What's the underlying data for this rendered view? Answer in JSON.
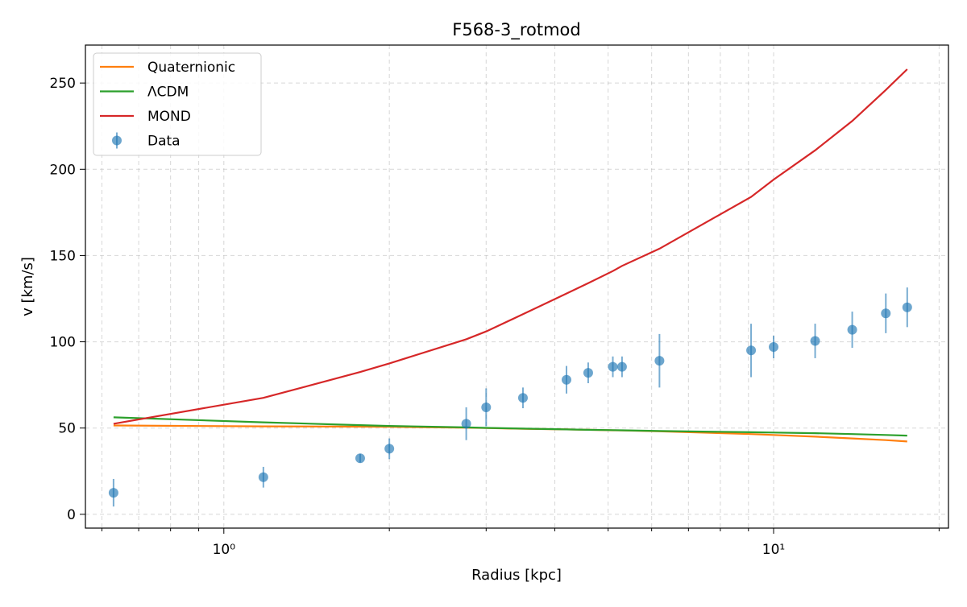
{
  "chart_data": {
    "type": "scatter",
    "title": "F568-3_rotmod",
    "xlabel": "Radius [kpc]",
    "ylabel": "v [km/s]",
    "xscale": "log",
    "xlim": [
      0.56,
      20.8
    ],
    "ylim": [
      -8,
      272
    ],
    "yticks": [
      0,
      50,
      100,
      150,
      200,
      250
    ],
    "ytick_labels": [
      "0",
      "50",
      "100",
      "150",
      "200",
      "250"
    ],
    "xticks_major": [
      1,
      10
    ],
    "xtick_labels": [
      "10⁰",
      "10¹"
    ],
    "grid": true,
    "legend_location": "upper-left",
    "series": [
      {
        "name": "Quaternionic",
        "kind": "line",
        "color": "#ff7f0e",
        "x": [
          0.63,
          1.18,
          1.77,
          2.0,
          2.76,
          3.0,
          3.5,
          4.2,
          4.6,
          5.1,
          5.3,
          6.2,
          9.1,
          10.0,
          11.9,
          13.9,
          16.0,
          17.5
        ],
        "y": [
          51.5,
          51.0,
          50.8,
          50.7,
          50.2,
          50.0,
          49.6,
          49.2,
          49.0,
          48.7,
          48.6,
          48.1,
          46.5,
          46.0,
          45.0,
          44.0,
          43.0,
          42.2
        ]
      },
      {
        "name": "ΛCDM",
        "kind": "line",
        "color": "#2ca02c",
        "x": [
          0.63,
          1.18,
          1.77,
          2.0,
          2.76,
          3.0,
          3.5,
          4.2,
          4.6,
          5.1,
          5.3,
          6.2,
          9.1,
          10.0,
          11.9,
          13.9,
          16.0,
          17.5
        ],
        "y": [
          56.2,
          53.3,
          51.7,
          51.2,
          50.4,
          50.1,
          49.7,
          49.2,
          49.0,
          48.8,
          48.7,
          48.3,
          47.6,
          47.4,
          47.0,
          46.5,
          46.0,
          45.6
        ]
      },
      {
        "name": "MOND",
        "kind": "line",
        "color": "#d62728",
        "x": [
          0.63,
          1.18,
          1.77,
          2.0,
          2.76,
          3.0,
          3.5,
          4.2,
          4.6,
          5.1,
          5.3,
          6.2,
          9.1,
          10.0,
          11.9,
          13.9,
          16.0,
          17.5
        ],
        "y": [
          52.5,
          67.5,
          82.5,
          87.5,
          101.5,
          106,
          116,
          128,
          134,
          141,
          144,
          154,
          184,
          194,
          211,
          228,
          246,
          258
        ]
      },
      {
        "name": "Data",
        "kind": "errorbar",
        "color": "#1f77b4",
        "x": [
          0.63,
          1.18,
          1.77,
          2.0,
          2.76,
          3.0,
          3.5,
          4.2,
          4.6,
          5.1,
          5.3,
          6.2,
          9.1,
          10.0,
          11.9,
          13.9,
          16.0,
          17.5
        ],
        "y": [
          12.5,
          21.5,
          32.5,
          38,
          52.5,
          62,
          67.5,
          78,
          82,
          85.5,
          85.5,
          89,
          95,
          97,
          100.5,
          107,
          116.5,
          120
        ],
        "yerr": [
          8,
          6,
          2.5,
          6,
          9.5,
          11,
          6,
          8,
          6,
          6,
          6,
          15.5,
          15.5,
          6.5,
          10,
          10.5,
          11.5,
          11.5
        ]
      }
    ]
  }
}
